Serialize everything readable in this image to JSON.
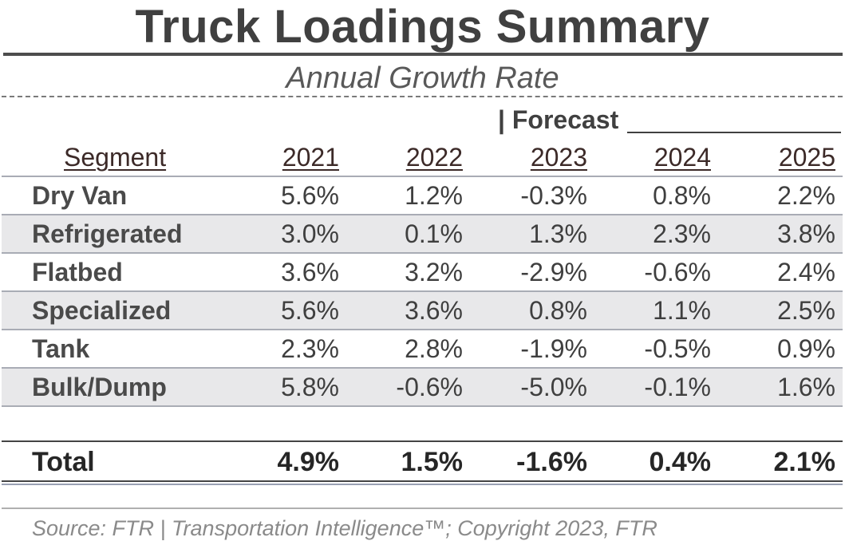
{
  "chart_data": {
    "type": "table",
    "title": "Truck Loadings Summary",
    "subtitle": "Annual Growth Rate",
    "forecast_label": "| Forecast",
    "segment_header": "Segment",
    "years": [
      "2021",
      "2022",
      "2023",
      "2024",
      "2025"
    ],
    "rows": [
      {
        "segment": "Dry Van",
        "values": [
          "5.6%",
          "1.2%",
          "-0.3%",
          "0.8%",
          "2.2%"
        ]
      },
      {
        "segment": "Refrigerated",
        "values": [
          "3.0%",
          "0.1%",
          "1.3%",
          "2.3%",
          "3.8%"
        ]
      },
      {
        "segment": "Flatbed",
        "values": [
          "3.6%",
          "3.2%",
          "-2.9%",
          "-0.6%",
          "2.4%"
        ]
      },
      {
        "segment": "Specialized",
        "values": [
          "5.6%",
          "3.6%",
          "0.8%",
          "1.1%",
          "2.5%"
        ]
      },
      {
        "segment": "Tank",
        "values": [
          "2.3%",
          "2.8%",
          "-1.9%",
          "-0.5%",
          "0.9%"
        ]
      },
      {
        "segment": "Bulk/Dump",
        "values": [
          "5.8%",
          "-0.6%",
          "-5.0%",
          "-0.1%",
          "1.6%"
        ]
      }
    ],
    "total": {
      "label": "Total",
      "values": [
        "4.9%",
        "1.5%",
        "-1.6%",
        "0.4%",
        "2.1%"
      ]
    },
    "source": "Source: FTR | Transportation Intelligence™; Copyright 2023, FTR"
  }
}
